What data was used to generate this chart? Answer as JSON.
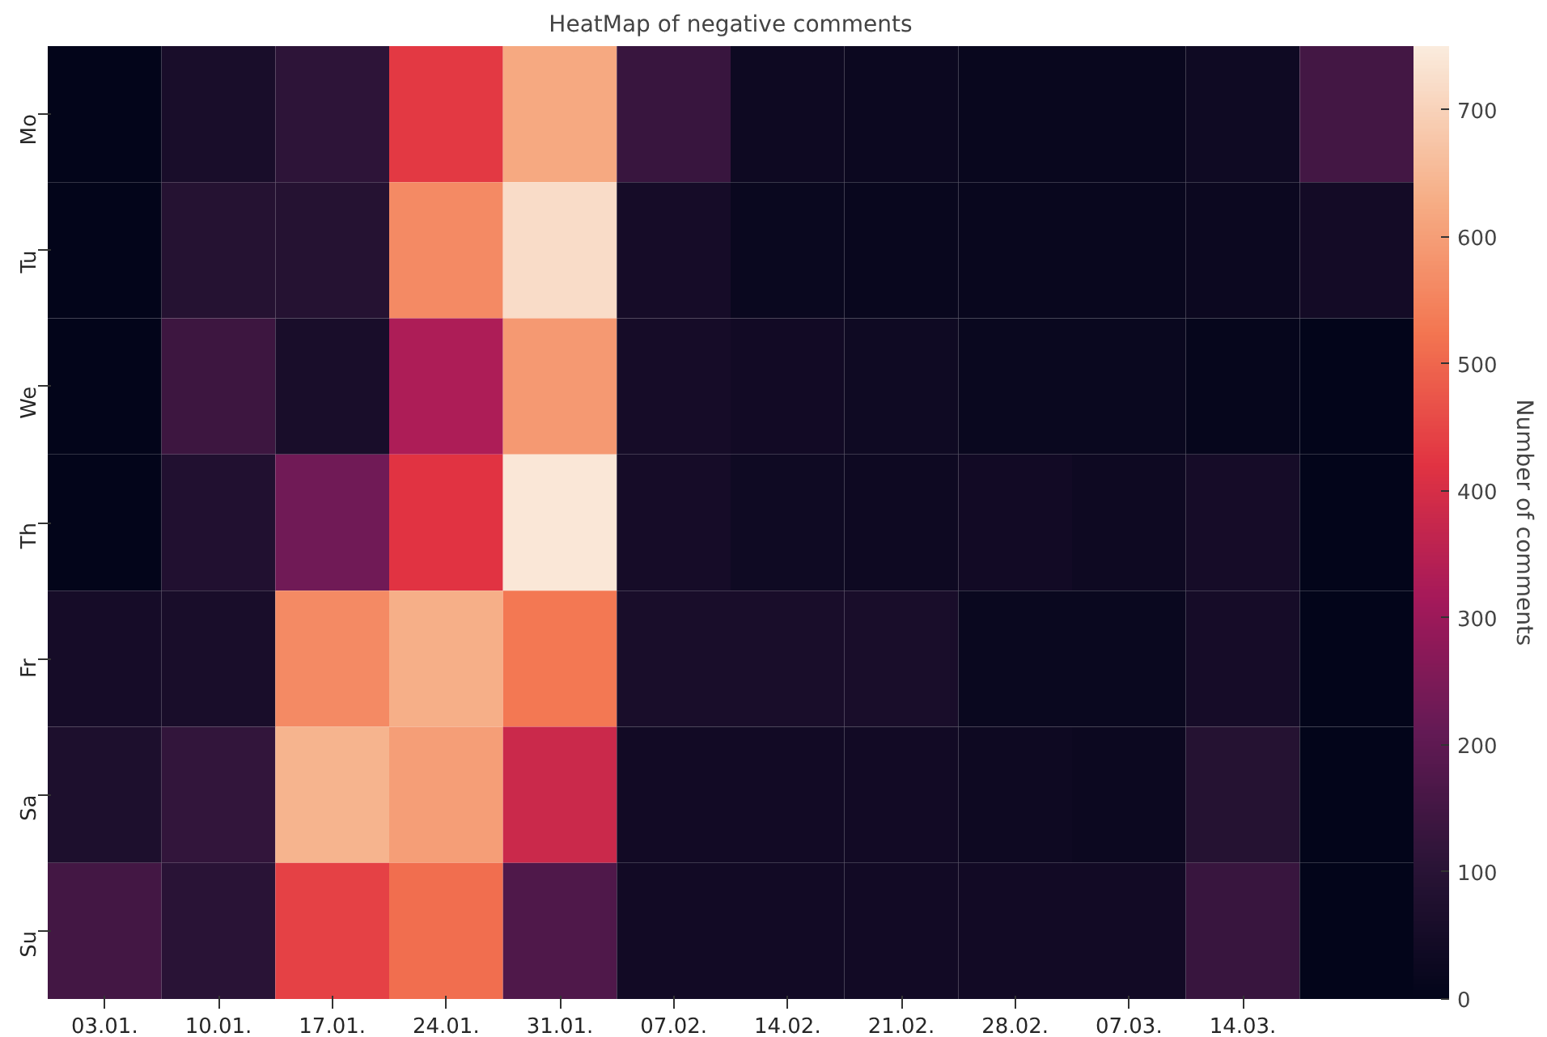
{
  "chart_data": {
    "type": "heatmap",
    "title": "HeatMap of negative comments",
    "clabel": "Number of comments",
    "categories": [
      "03.01.",
      "10.01.",
      "17.01.",
      "24.01.",
      "31.01.",
      "07.02.",
      "14.02.",
      "21.02.",
      "28.02.",
      "07.03.",
      "14.03.",
      null
    ],
    "y_categories": [
      "Mo",
      "Tu",
      "We",
      "Th",
      "Fr",
      "Sa",
      "Su"
    ],
    "cells": [
      [
        0,
        60,
        110,
        430,
        620,
        130,
        30,
        25,
        15,
        15,
        35,
        150
      ],
      [
        0,
        90,
        90,
        560,
        720,
        50,
        20,
        15,
        15,
        15,
        25,
        45
      ],
      [
        0,
        140,
        60,
        330,
        590,
        50,
        40,
        35,
        20,
        20,
        10,
        0
      ],
      [
        0,
        80,
        230,
        420,
        740,
        50,
        35,
        30,
        40,
        30,
        50,
        0
      ],
      [
        50,
        60,
        560,
        630,
        530,
        60,
        60,
        60,
        20,
        20,
        50,
        0
      ],
      [
        70,
        120,
        640,
        600,
        380,
        40,
        40,
        40,
        30,
        25,
        90,
        0
      ],
      [
        150,
        100,
        440,
        510,
        170,
        40,
        40,
        40,
        40,
        40,
        130,
        0
      ]
    ],
    "clim": [
      0,
      750
    ],
    "cticks": [
      0,
      100,
      200,
      300,
      400,
      500,
      600,
      700
    ]
  }
}
